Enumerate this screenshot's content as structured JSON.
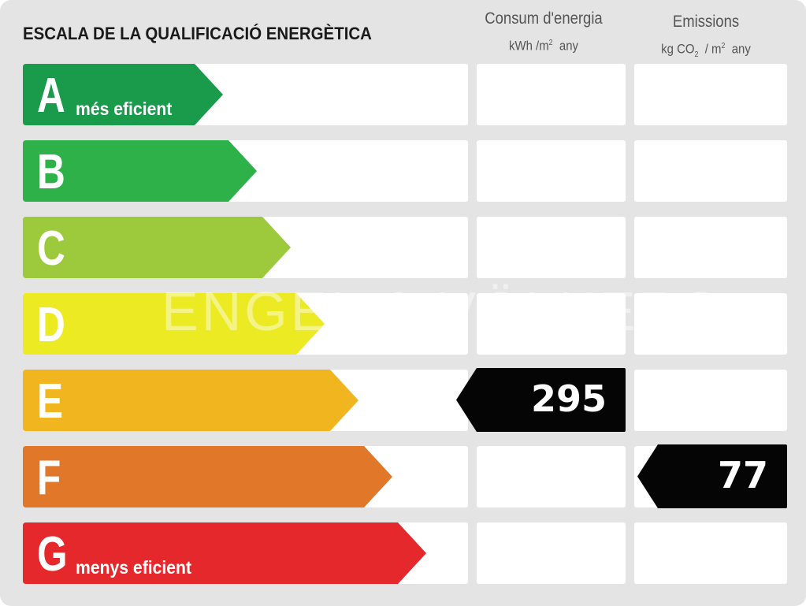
{
  "title": "ESCALA DE LA QUALIFICACIÓ ENERGÈTICA",
  "watermark": "ENGEL & VÖLKERS",
  "columns": {
    "consumption": {
      "label": "Consum d'energia",
      "unit_a": "kWh /m",
      "unit_sup": "2",
      "unit_b": "any"
    },
    "emissions": {
      "label": "Emissions",
      "unit_a": "kg CO",
      "unit_sub": "2",
      "unit_mid": "/ m",
      "unit_sup": "2",
      "unit_b": "any"
    }
  },
  "chart_data": {
    "type": "table",
    "classes": [
      {
        "letter": "A",
        "note": "més eficient",
        "color": "#1a9a4b"
      },
      {
        "letter": "B",
        "note": "",
        "color": "#2fb14a"
      },
      {
        "letter": "C",
        "note": "",
        "color": "#9dc93c"
      },
      {
        "letter": "D",
        "note": "",
        "color": "#ecea23"
      },
      {
        "letter": "E",
        "note": "",
        "color": "#f0b51f"
      },
      {
        "letter": "F",
        "note": "",
        "color": "#e07729"
      },
      {
        "letter": "G",
        "note": "menys eficient",
        "color": "#e4282b"
      }
    ],
    "consumption": {
      "value": "295",
      "class": "E"
    },
    "emissions": {
      "value": "77",
      "class": "F"
    }
  }
}
